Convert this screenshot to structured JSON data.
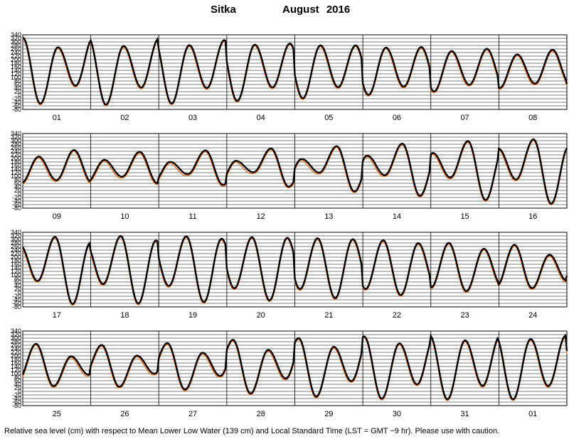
{
  "title": {
    "station": "Sitka",
    "month_year": "August   2016"
  },
  "caption": "Relative sea level (cm) with respect to Mean Lower Low Water (139 cm) and Local Standard Time (LST = GMT −9 hr). Please use with caution.",
  "colors": {
    "observed": "#000000",
    "predicted": "#e8762c",
    "grid": "#000000",
    "background": "#ffffff"
  },
  "chart_data": {
    "type": "line",
    "ylabel": "",
    "ylim": [
      -80,
      340
    ],
    "yticks": [
      "340",
      "320",
      "300",
      "280",
      "260",
      "240",
      "220",
      "200",
      "180",
      "160",
      "140",
      "120",
      "100",
      "80",
      "60",
      "40",
      "20",
      "0",
      "-20",
      "-40",
      "-60",
      "-80"
    ],
    "series_names": {
      "observed": "",
      "predicted": ""
    },
    "panels": [
      {
        "days": [
          "01",
          "02",
          "03",
          "04",
          "05",
          "06",
          "07",
          "08"
        ],
        "high_low_pairs_approx": [
          [
            270,
            280,
            -50,
            45
          ],
          [
            320,
            270,
            -55,
            50
          ]
        ]
      },
      {
        "days": [
          "09",
          "10",
          "11",
          "12",
          "13",
          "14",
          "15",
          "16"
        ]
      },
      {
        "days": [
          "17",
          "18",
          "19",
          "20",
          "21",
          "22",
          "23",
          "24"
        ]
      },
      {
        "days": [
          "25",
          "26",
          "27",
          "28",
          "29",
          "30",
          "31",
          "01"
        ]
      }
    ],
    "daily_extrema_cm": [
      {
        "day": "01",
        "HH": 325,
        "LH": 265,
        "LL": -45,
        "HL": 65
      },
      {
        "day": "02",
        "HH": 325,
        "LH": 275,
        "LL": -55,
        "HL": 50
      },
      {
        "day": "03",
        "HH": 320,
        "LH": 280,
        "LL": -50,
        "HL": 40
      },
      {
        "day": "04",
        "HH": 310,
        "LH": 285,
        "LL": -35,
        "HL": 40
      },
      {
        "day": "05",
        "HH": 290,
        "LH": 285,
        "LL": -20,
        "HL": 45
      },
      {
        "day": "06",
        "HH": 280,
        "LH": 275,
        "LL": 0,
        "HL": 45
      },
      {
        "day": "07",
        "HH": 270,
        "LH": 255,
        "LL": 20,
        "HL": 50
      },
      {
        "day": "08",
        "HH": 260,
        "LH": 235,
        "LL": 40,
        "HL": 65
      },
      {
        "day": "09",
        "HH": 255,
        "LH": 215,
        "LL": 60,
        "HL": 65
      },
      {
        "day": "10",
        "HH": 245,
        "LH": 195,
        "LL": 65,
        "HL": 90
      },
      {
        "day": "11",
        "HH": 235,
        "LH": 180,
        "LL": 60,
        "HL": 105
      },
      {
        "day": "12",
        "HH": 250,
        "LH": 185,
        "LL": 50,
        "HL": 120
      },
      {
        "day": "13",
        "HH": 260,
        "LH": 195,
        "LL": 40,
        "HL": 125
      },
      {
        "day": "14",
        "HH": 275,
        "LH": 215,
        "LL": 10,
        "HL": 110
      },
      {
        "day": "15",
        "HH": 290,
        "LH": 230,
        "LL": -15,
        "HL": 95
      },
      {
        "day": "16",
        "HH": 305,
        "LH": 255,
        "LL": -40,
        "HL": 85
      },
      {
        "day": "17",
        "HH": 310,
        "LH": 270,
        "LL": -60,
        "HL": 70
      },
      {
        "day": "18",
        "HH": 320,
        "LH": 280,
        "LL": -65,
        "HL": 50
      },
      {
        "day": "19",
        "HH": 320,
        "LH": 295,
        "LL": -60,
        "HL": 40
      },
      {
        "day": "20",
        "HH": 315,
        "LH": 305,
        "LL": -50,
        "HL": 25
      },
      {
        "day": "21",
        "HH": 310,
        "LH": 310,
        "LL": -40,
        "HL": 20
      },
      {
        "day": "22",
        "HH": 300,
        "LH": 300,
        "LL": -25,
        "HL": 20
      },
      {
        "day": "23",
        "HH": 285,
        "LH": 275,
        "LL": -5,
        "HL": 30
      },
      {
        "day": "24",
        "HH": 270,
        "LH": 240,
        "LL": 20,
        "HL": 40
      },
      {
        "day": "25",
        "HH": 270,
        "LH": 205,
        "LL": 30,
        "HL": 65
      },
      {
        "day": "26",
        "HH": 260,
        "LH": 195,
        "LL": 30,
        "HL": 95
      },
      {
        "day": "27",
        "HH": 270,
        "LH": 205,
        "LL": 20,
        "HL": 100
      },
      {
        "day": "28",
        "HH": 290,
        "LH": 225,
        "LL": -5,
        "HL": 85
      },
      {
        "day": "29",
        "HH": 300,
        "LH": 240,
        "LL": -25,
        "HL": 70
      },
      {
        "day": "30",
        "HH": 310,
        "LH": 260,
        "LL": -40,
        "HL": 55
      },
      {
        "day": "31",
        "HH": 315,
        "LH": 280,
        "LL": -45,
        "HL": 35
      },
      {
        "day": "01",
        "HH": 315,
        "LH": 295,
        "LL": -45,
        "HL": 30
      }
    ]
  }
}
